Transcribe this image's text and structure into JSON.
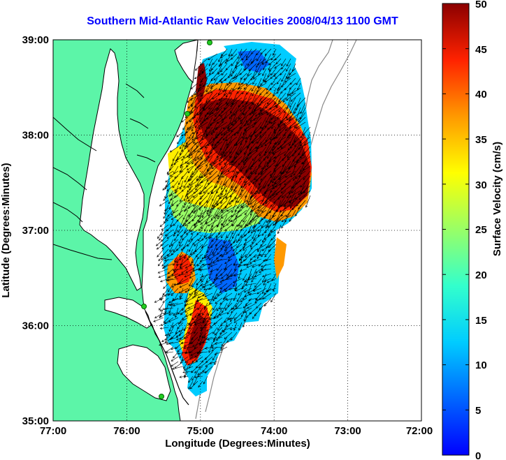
{
  "title": "Southern Mid-Atlantic Raw Velocities 2008/04/13 1100 GMT",
  "x_axis": {
    "label": "Longitude (Degrees:Minutes)",
    "ticks": [
      "77:00",
      "76:00",
      "75:00",
      "74:00",
      "73:00",
      "72:00"
    ]
  },
  "y_axis": {
    "label": "Latitude (Degrees:Minutes)",
    "ticks": [
      "39:00",
      "38:00",
      "37:00",
      "36:00",
      "35:00"
    ]
  },
  "colorbar": {
    "label": "Surface Velocity (cm/s)",
    "ticks": [
      "50",
      "45",
      "40",
      "35",
      "30",
      "25",
      "20",
      "15",
      "10",
      "5",
      "0"
    ],
    "range": [
      0,
      50
    ],
    "colormap": "jet"
  },
  "map": {
    "lon_range": [
      -77,
      -72
    ],
    "lat_range": [
      35,
      39
    ],
    "grid": "dotted",
    "land_color": "#5cf5a8",
    "coastline_color": "#000000",
    "bathymetry_color": "#808080",
    "station_marker_color": "#22cc22",
    "vector_color": "#000000"
  }
}
